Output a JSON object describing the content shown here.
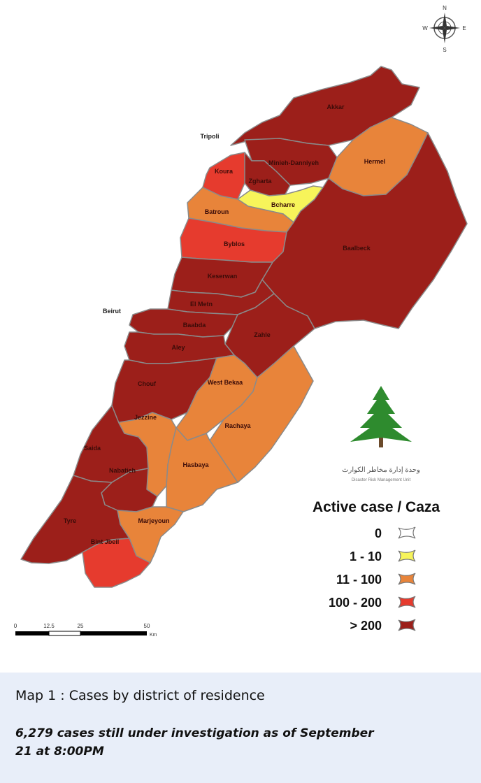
{
  "map": {
    "compass": {
      "n": "N",
      "s": "S",
      "e": "E",
      "w": "W"
    },
    "places": {
      "tripoli": "Tripoli",
      "beirut": "Beirut"
    },
    "districts": [
      {
        "key": "akkar",
        "name": "Akkar",
        "class": "> 200"
      },
      {
        "key": "minieh",
        "name": "Minieh-Danniyeh",
        "class": "> 200"
      },
      {
        "key": "hermel",
        "name": "Hermel",
        "class": "11 - 100"
      },
      {
        "key": "koura",
        "name": "Koura",
        "class": "100 - 200"
      },
      {
        "key": "zgharta",
        "name": "Zgharta",
        "class": "> 200"
      },
      {
        "key": "bcharre",
        "name": "Bcharre",
        "class": "1 - 10"
      },
      {
        "key": "batroun",
        "name": "Batroun",
        "class": "11 - 100"
      },
      {
        "key": "byblos",
        "name": "Byblos",
        "class": "100 - 200"
      },
      {
        "key": "baalbeck",
        "name": "Baalbeck",
        "class": "> 200"
      },
      {
        "key": "keserwan",
        "name": "Keserwan",
        "class": "> 200"
      },
      {
        "key": "elmetn",
        "name": "El Metn",
        "class": "> 200"
      },
      {
        "key": "baabda",
        "name": "Baabda",
        "class": "> 200"
      },
      {
        "key": "zahle",
        "name": "Zahle",
        "class": "> 200"
      },
      {
        "key": "aley",
        "name": "Aley",
        "class": "> 200"
      },
      {
        "key": "chouf",
        "name": "Chouf",
        "class": "> 200"
      },
      {
        "key": "westbekaa",
        "name": "West Bekaa",
        "class": "11 - 100"
      },
      {
        "key": "jezzine",
        "name": "Jezzine",
        "class": "11 - 100"
      },
      {
        "key": "rachaya",
        "name": "Rachaya",
        "class": "11 - 100"
      },
      {
        "key": "saida",
        "name": "Saida",
        "class": "> 200"
      },
      {
        "key": "nabatieh",
        "name": "Nabatieh",
        "class": "> 200"
      },
      {
        "key": "hasbaya",
        "name": "Hasbaya",
        "class": "11 - 100"
      },
      {
        "key": "marjeyoun",
        "name": "Marjeyoun",
        "class": "11 - 100"
      },
      {
        "key": "tyre",
        "name": "Tyre",
        "class": "> 200"
      },
      {
        "key": "bintjbeil",
        "name": "Bint Jbeil",
        "class": "100 - 200"
      }
    ],
    "colors": {
      "0": "#ffffff",
      "1 - 10": "#f7f45a",
      "11 - 100": "#e8843a",
      "100 - 200": "#e63b2e",
      "> 200": "#9c1f1a",
      "border": "#8a8a8a"
    },
    "legend": {
      "title": "Active case / Caza",
      "items": [
        "0",
        "1 - 10",
        "11 - 100",
        "100 - 200",
        "> 200"
      ]
    },
    "scale_bar": {
      "ticks": [
        "0",
        "12.5",
        "25",
        "50"
      ],
      "unit": "Km"
    },
    "logo": {
      "icon": "cedar-tree-icon",
      "text_ar": "وحدة إدارة مخاطر الكوارث",
      "text_en": "Disaster Risk Management Unit"
    }
  },
  "caption": {
    "title": "Map 1 : Cases by district of residence",
    "note": "6,279 cases still under investigation as of September 21 at 8:00PM"
  }
}
